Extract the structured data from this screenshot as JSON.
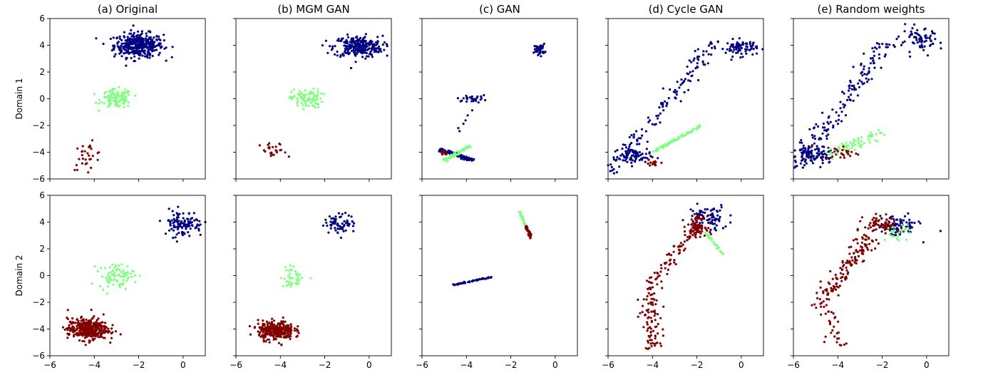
{
  "colors": {
    "cluster_blue": "#000080",
    "cluster_green": "#80ff80",
    "cluster_red": "#800000"
  },
  "row_labels": [
    "Domain 1",
    "Domain 2"
  ],
  "column_titles": [
    "(a) Original",
    "(b) MGM GAN",
    "(c) GAN",
    "(d) Cycle GAN",
    "(e) Random weights"
  ],
  "axes": {
    "xlim": [
      -6,
      1
    ],
    "ylim": [
      -6,
      6
    ],
    "xticks": [
      -6,
      -4,
      -2,
      0
    ],
    "yticks": [
      -6,
      -4,
      -2,
      0,
      2,
      4,
      6
    ],
    "tick_labels_shown": "left column y, bottom row x; shared axes elsewhere"
  },
  "chart_data": [
    {
      "type": "scatter",
      "title": "(a) Original",
      "ylabel": "Domain 1",
      "xlim": [
        -6,
        1
      ],
      "ylim": [
        -6,
        6
      ],
      "grid": false,
      "clusters": [
        {
          "color": "#000080",
          "shape": "blob",
          "center": [
            -2.0,
            4.0
          ],
          "spread": [
            0.55,
            0.45
          ],
          "count": 380
        },
        {
          "color": "#80ff80",
          "shape": "blob",
          "center": [
            -3.0,
            0.0
          ],
          "spread": [
            0.35,
            0.35
          ],
          "count": 110
        },
        {
          "color": "#800000",
          "shape": "blob",
          "center": [
            -4.3,
            -4.3
          ],
          "spread": [
            0.35,
            0.5
          ],
          "count": 30
        }
      ]
    },
    {
      "type": "scatter",
      "title": "(b) MGM GAN",
      "xlim": [
        -6,
        1
      ],
      "ylim": [
        -6,
        6
      ],
      "grid": false,
      "clusters": [
        {
          "color": "#000080",
          "shape": "blob",
          "center": [
            -0.5,
            3.9
          ],
          "spread": [
            0.55,
            0.4
          ],
          "count": 260
        },
        {
          "color": "#80ff80",
          "shape": "blob",
          "center": [
            -2.8,
            0.0
          ],
          "spread": [
            0.35,
            0.35
          ],
          "count": 90
        },
        {
          "color": "#800000",
          "shape": "blob",
          "center": [
            -4.3,
            -4.0
          ],
          "spread": [
            0.3,
            0.35
          ],
          "count": 25
        }
      ]
    },
    {
      "type": "scatter",
      "title": "(c) GAN",
      "xlim": [
        -6,
        1
      ],
      "ylim": [
        -6,
        6
      ],
      "grid": false,
      "clusters": [
        {
          "color": "#000080",
          "shape": "blob",
          "center": [
            -0.7,
            3.7
          ],
          "spread": [
            0.12,
            0.2
          ],
          "count": 50
        },
        {
          "color": "#000080",
          "shape": "blob",
          "center": [
            -3.8,
            0.0
          ],
          "spread": [
            0.3,
            0.1
          ],
          "count": 30
        },
        {
          "color": "#000080",
          "shape": "line",
          "from": [
            -5.2,
            -3.8
          ],
          "to": [
            -3.7,
            -4.6
          ],
          "width": 0.12,
          "count": 120
        },
        {
          "color": "#000080",
          "shape": "line",
          "from": [
            -4.5,
            -2.5
          ],
          "to": [
            -3.0,
            0.6
          ],
          "width": 0.1,
          "count": 8
        },
        {
          "color": "#80ff80",
          "shape": "line",
          "from": [
            -5.0,
            -4.6
          ],
          "to": [
            -3.8,
            -3.5
          ],
          "width": 0.1,
          "count": 60
        },
        {
          "color": "#800000",
          "shape": "blob",
          "center": [
            -5.0,
            -4.0
          ],
          "spread": [
            0.1,
            0.1
          ],
          "count": 10
        }
      ]
    },
    {
      "type": "scatter",
      "title": "(d) Cycle GAN",
      "xlim": [
        -6,
        1
      ],
      "ylim": [
        -6,
        6
      ],
      "grid": false,
      "clusters": [
        {
          "color": "#000080",
          "shape": "blob",
          "center": [
            0.0,
            3.8
          ],
          "spread": [
            0.35,
            0.3
          ],
          "count": 80
        },
        {
          "color": "#000080",
          "shape": "line",
          "from": [
            -6.0,
            -5.5
          ],
          "to": [
            -1.0,
            4.4
          ],
          "width": 0.45,
          "count": 140
        },
        {
          "color": "#000080",
          "shape": "blob",
          "center": [
            -4.8,
            -4.3
          ],
          "spread": [
            0.35,
            0.35
          ],
          "count": 70
        },
        {
          "color": "#80ff80",
          "shape": "line",
          "from": [
            -4.0,
            -4.0
          ],
          "to": [
            -1.8,
            -2.0
          ],
          "width": 0.08,
          "count": 90
        },
        {
          "color": "#800000",
          "shape": "blob",
          "center": [
            -3.9,
            -4.8
          ],
          "spread": [
            0.2,
            0.15
          ],
          "count": 15
        }
      ]
    },
    {
      "type": "scatter",
      "title": "(e) Random weights",
      "xlim": [
        -6,
        1
      ],
      "ylim": [
        -6,
        6
      ],
      "grid": false,
      "clusters": [
        {
          "color": "#000080",
          "shape": "blob",
          "center": [
            -0.3,
            4.3
          ],
          "spread": [
            0.45,
            0.45
          ],
          "count": 70
        },
        {
          "color": "#000080",
          "shape": "line",
          "from": [
            -6.0,
            -5.3
          ],
          "to": [
            -1.8,
            4.2
          ],
          "width": 0.55,
          "count": 160
        },
        {
          "color": "#000080",
          "shape": "blob",
          "center": [
            -5.0,
            -4.2
          ],
          "spread": [
            0.55,
            0.35
          ],
          "count": 90
        },
        {
          "color": "#80ff80",
          "shape": "line",
          "from": [
            -4.5,
            -4.2
          ],
          "to": [
            -2.0,
            -2.5
          ],
          "width": 0.35,
          "count": 70
        },
        {
          "color": "#800000",
          "shape": "blob",
          "center": [
            -3.8,
            -4.0
          ],
          "spread": [
            0.4,
            0.25
          ],
          "count": 25
        }
      ]
    },
    {
      "type": "scatter",
      "ylabel": "Domain 2",
      "xlim": [
        -6,
        1
      ],
      "ylim": [
        -6,
        6
      ],
      "grid": false,
      "clusters": [
        {
          "color": "#000080",
          "shape": "blob",
          "center": [
            0.0,
            3.9
          ],
          "spread": [
            0.45,
            0.5
          ],
          "count": 110
        },
        {
          "color": "#80ff80",
          "shape": "blob",
          "center": [
            -3.0,
            0.0
          ],
          "spread": [
            0.4,
            0.45
          ],
          "count": 80
        },
        {
          "color": "#800000",
          "shape": "blob",
          "center": [
            -4.3,
            -4.0
          ],
          "spread": [
            0.45,
            0.4
          ],
          "count": 380
        }
      ]
    },
    {
      "type": "scatter",
      "xlim": [
        -6,
        1
      ],
      "ylim": [
        -6,
        6
      ],
      "grid": false,
      "clusters": [
        {
          "color": "#000080",
          "shape": "blob",
          "center": [
            -1.3,
            3.9
          ],
          "spread": [
            0.35,
            0.35
          ],
          "count": 70
        },
        {
          "color": "#80ff80",
          "shape": "blob",
          "center": [
            -3.4,
            -0.1
          ],
          "spread": [
            0.3,
            0.4
          ],
          "count": 40
        },
        {
          "color": "#800000",
          "shape": "blob",
          "center": [
            -4.2,
            -4.1
          ],
          "spread": [
            0.4,
            0.35
          ],
          "count": 300
        }
      ]
    },
    {
      "type": "scatter",
      "xlim": [
        -6,
        1
      ],
      "ylim": [
        -6,
        6
      ],
      "grid": false,
      "clusters": [
        {
          "color": "#000080",
          "shape": "line",
          "from": [
            -4.6,
            -0.7
          ],
          "to": [
            -2.8,
            -0.1
          ],
          "width": 0.05,
          "count": 60
        },
        {
          "color": "#80ff80",
          "shape": "line",
          "from": [
            -1.6,
            4.8
          ],
          "to": [
            -1.3,
            3.5
          ],
          "width": 0.05,
          "count": 40
        },
        {
          "color": "#800000",
          "shape": "line",
          "from": [
            -1.3,
            3.7
          ],
          "to": [
            -1.1,
            2.8
          ],
          "width": 0.06,
          "count": 40
        }
      ]
    },
    {
      "type": "scatter",
      "xlim": [
        -6,
        1
      ],
      "ylim": [
        -6,
        6
      ],
      "grid": false,
      "clusters": [
        {
          "color": "#000080",
          "shape": "blob",
          "center": [
            -1.5,
            4.3
          ],
          "spread": [
            0.45,
            0.5
          ],
          "count": 80
        },
        {
          "color": "#800000",
          "shape": "blob",
          "center": [
            -2.0,
            3.7
          ],
          "spread": [
            0.2,
            0.35
          ],
          "count": 90
        },
        {
          "color": "#800000",
          "shape": "line",
          "from": [
            -2.2,
            3.2
          ],
          "to": [
            -4.0,
            -0.6
          ],
          "width": 0.35,
          "count": 60
        },
        {
          "color": "#800000",
          "shape": "line",
          "from": [
            -4.2,
            -0.8
          ],
          "to": [
            -4.0,
            -5.5
          ],
          "width": 0.45,
          "count": 90
        },
        {
          "color": "#80ff80",
          "shape": "line",
          "from": [
            -1.6,
            3.2
          ],
          "to": [
            -0.8,
            1.6
          ],
          "width": 0.06,
          "count": 30
        }
      ]
    },
    {
      "type": "scatter",
      "xlim": [
        -6,
        1
      ],
      "ylim": [
        -6,
        6
      ],
      "grid": false,
      "clusters": [
        {
          "color": "#000080",
          "shape": "blob",
          "center": [
            -1.3,
            3.7
          ],
          "spread": [
            0.45,
            0.4
          ],
          "count": 90
        },
        {
          "color": "#800000",
          "shape": "blob",
          "center": [
            -2.0,
            3.8
          ],
          "spread": [
            0.4,
            0.35
          ],
          "count": 70
        },
        {
          "color": "#800000",
          "shape": "line",
          "from": [
            -2.5,
            3.0
          ],
          "to": [
            -4.6,
            -1.5
          ],
          "width": 0.5,
          "count": 120
        },
        {
          "color": "#800000",
          "shape": "line",
          "from": [
            -4.8,
            -1.5
          ],
          "to": [
            -4.0,
            -5.3
          ],
          "width": 0.5,
          "count": 40
        },
        {
          "color": "#80ff80",
          "shape": "blob",
          "center": [
            -1.3,
            3.2
          ],
          "spread": [
            0.3,
            0.3
          ],
          "count": 25
        }
      ]
    }
  ]
}
